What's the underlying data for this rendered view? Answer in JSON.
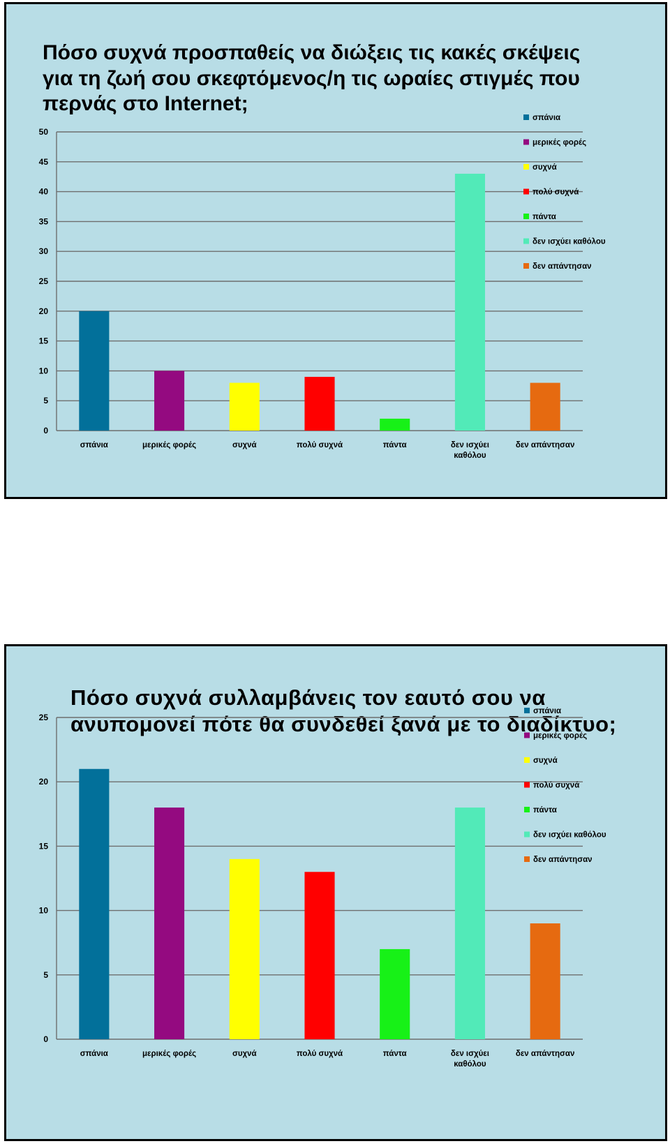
{
  "chart_data": [
    {
      "type": "bar",
      "title": "Πόσο συχνά προσπαθείς  να διώξεις τις κακές σκέψεις για τη ζωή σου σκεφτόμενος/η τις ωραίες στιγμές που περνάς στο Internet;",
      "categories": [
        "σπάνια",
        "μερικές φορές",
        "συχνά",
        "πολύ συχνά",
        "πάντα",
        "δεν ισχύει καθόλου",
        "δεν απάντησαν"
      ],
      "values": [
        20,
        10,
        8,
        9,
        2,
        43,
        8
      ],
      "colors": [
        "#02709a",
        "#940a80",
        "#ffff00",
        "#ff0000",
        "#17f117",
        "#52eab8",
        "#e66a10"
      ],
      "ylim": [
        0,
        50
      ],
      "yticks": [
        0,
        5,
        10,
        15,
        20,
        25,
        30,
        35,
        40,
        45,
        50
      ],
      "grid": true,
      "legend": "top-right"
    },
    {
      "type": "bar",
      "title": "Πόσο συχνά συλλαμβάνεις τον εαυτό σου να ανυπομονεί πότε θα συνδεθεί ξανά με το διαδίκτυο;",
      "categories": [
        "σπάνια",
        "μερικές φορές",
        "συχνά",
        "πολύ συχνά",
        "πάντα",
        "δεν ισχύει καθόλου",
        "δεν απάντησαν"
      ],
      "values": [
        21,
        18,
        14,
        13,
        7,
        18,
        9
      ],
      "colors": [
        "#02709a",
        "#940a80",
        "#ffff00",
        "#ff0000",
        "#17f117",
        "#52eab8",
        "#e66a10"
      ],
      "ylim": [
        0,
        25
      ],
      "yticks": [
        0,
        5,
        10,
        15,
        20,
        25
      ],
      "grid": true,
      "legend": "top-right"
    }
  ]
}
